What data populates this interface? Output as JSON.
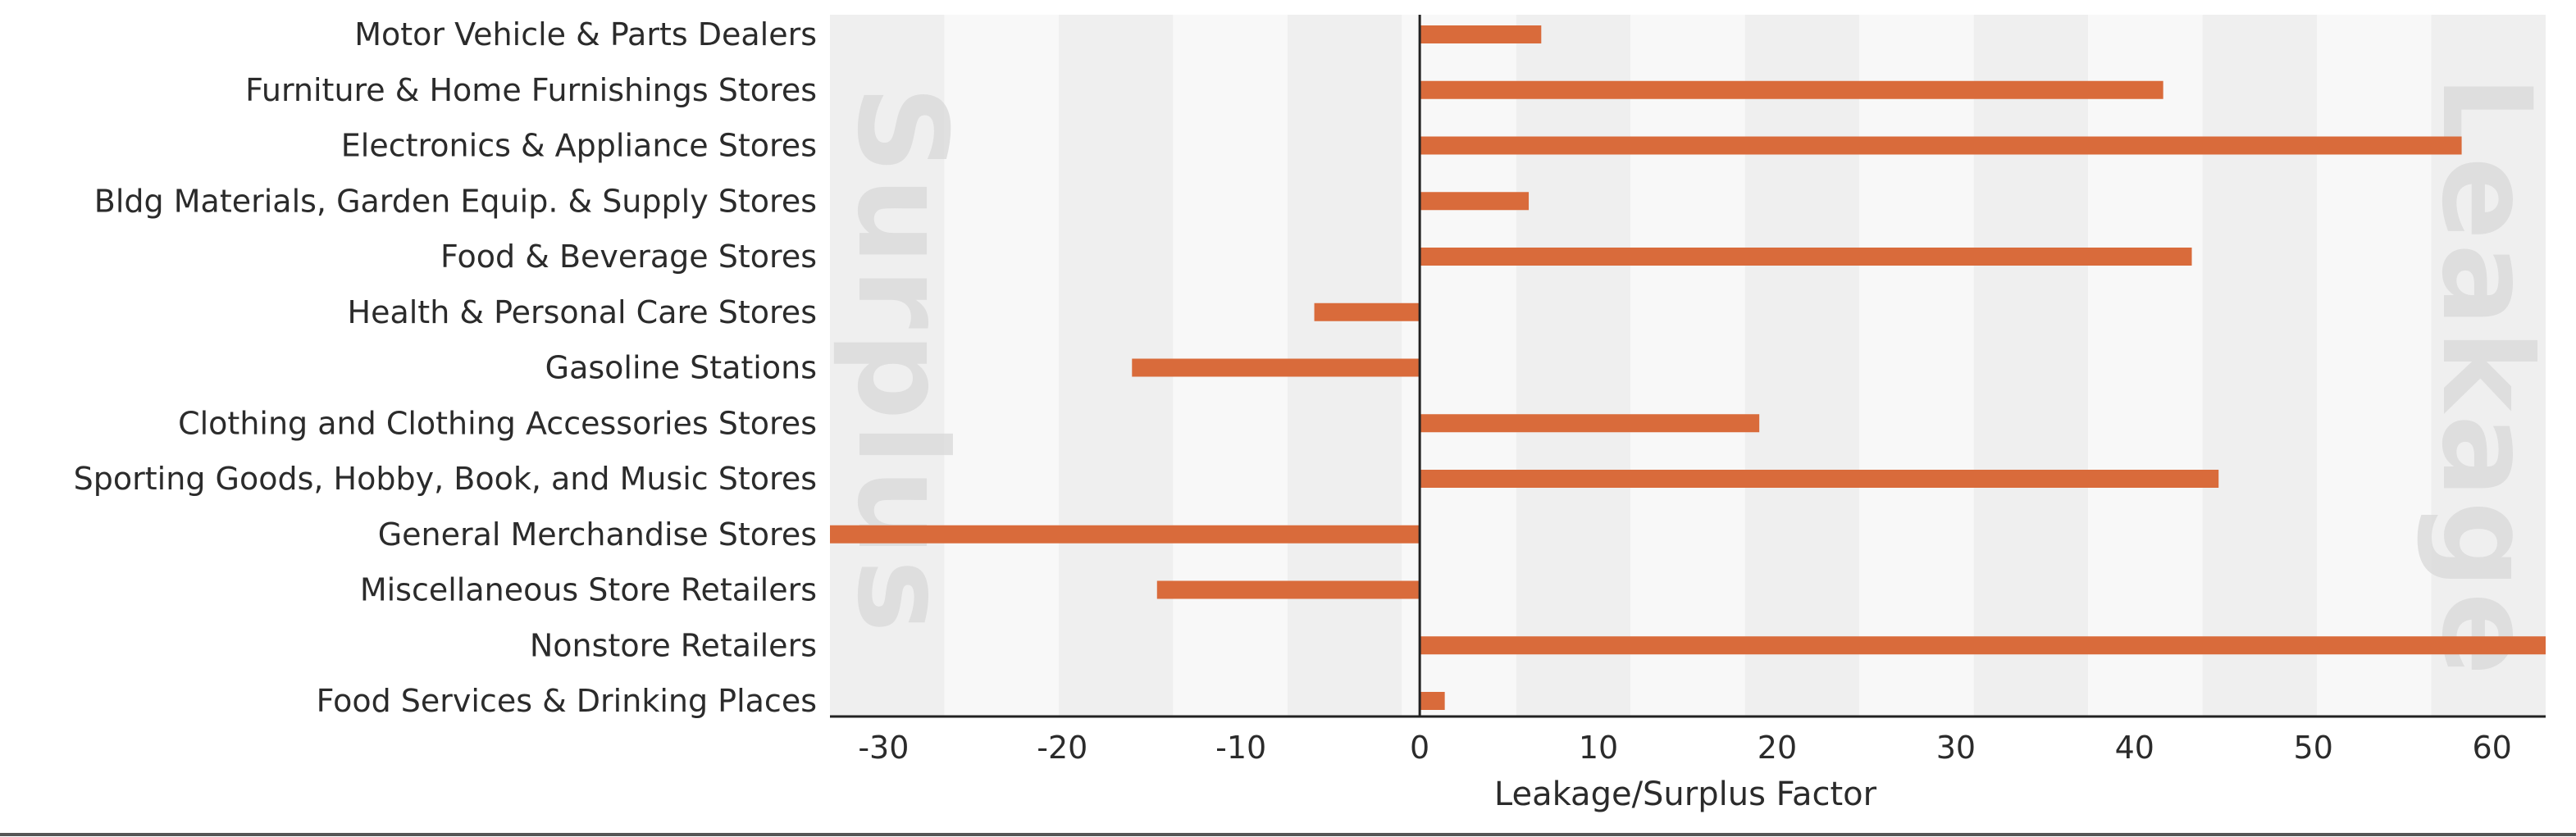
{
  "chart_data": {
    "type": "bar",
    "orientation": "horizontal",
    "xlabel": "Leakage/Surplus Factor",
    "xlim": [
      -33,
      63
    ],
    "xticks": [
      -30,
      -20,
      -10,
      0,
      10,
      20,
      30,
      40,
      50,
      60
    ],
    "categories": [
      "Motor Vehicle & Parts Dealers",
      "Furniture & Home Furnishings Stores",
      "Electronics & Appliance Stores",
      "Bldg Materials, Garden Equip. & Supply Stores",
      "Food & Beverage Stores",
      "Health & Personal Care Stores",
      "Gasoline Stations",
      "Clothing and Clothing Accessories Stores",
      "Sporting Goods, Hobby, Book, and Music Stores",
      "General Merchandise Stores",
      "Miscellaneous Store Retailers",
      "Nonstore Retailers",
      "Food Services & Drinking Places"
    ],
    "values": [
      6.8,
      41.6,
      58.3,
      6.1,
      43.2,
      -5.9,
      -16.1,
      19.0,
      44.7,
      -33.0,
      -14.7,
      63.0,
      1.4
    ],
    "bar_color": "#d96b3b",
    "band_colors": [
      "#efefef",
      "#f8f8f8"
    ],
    "watermarks": {
      "left": "Surplus",
      "right": "Leakage"
    },
    "grid": false,
    "legend": "none"
  }
}
